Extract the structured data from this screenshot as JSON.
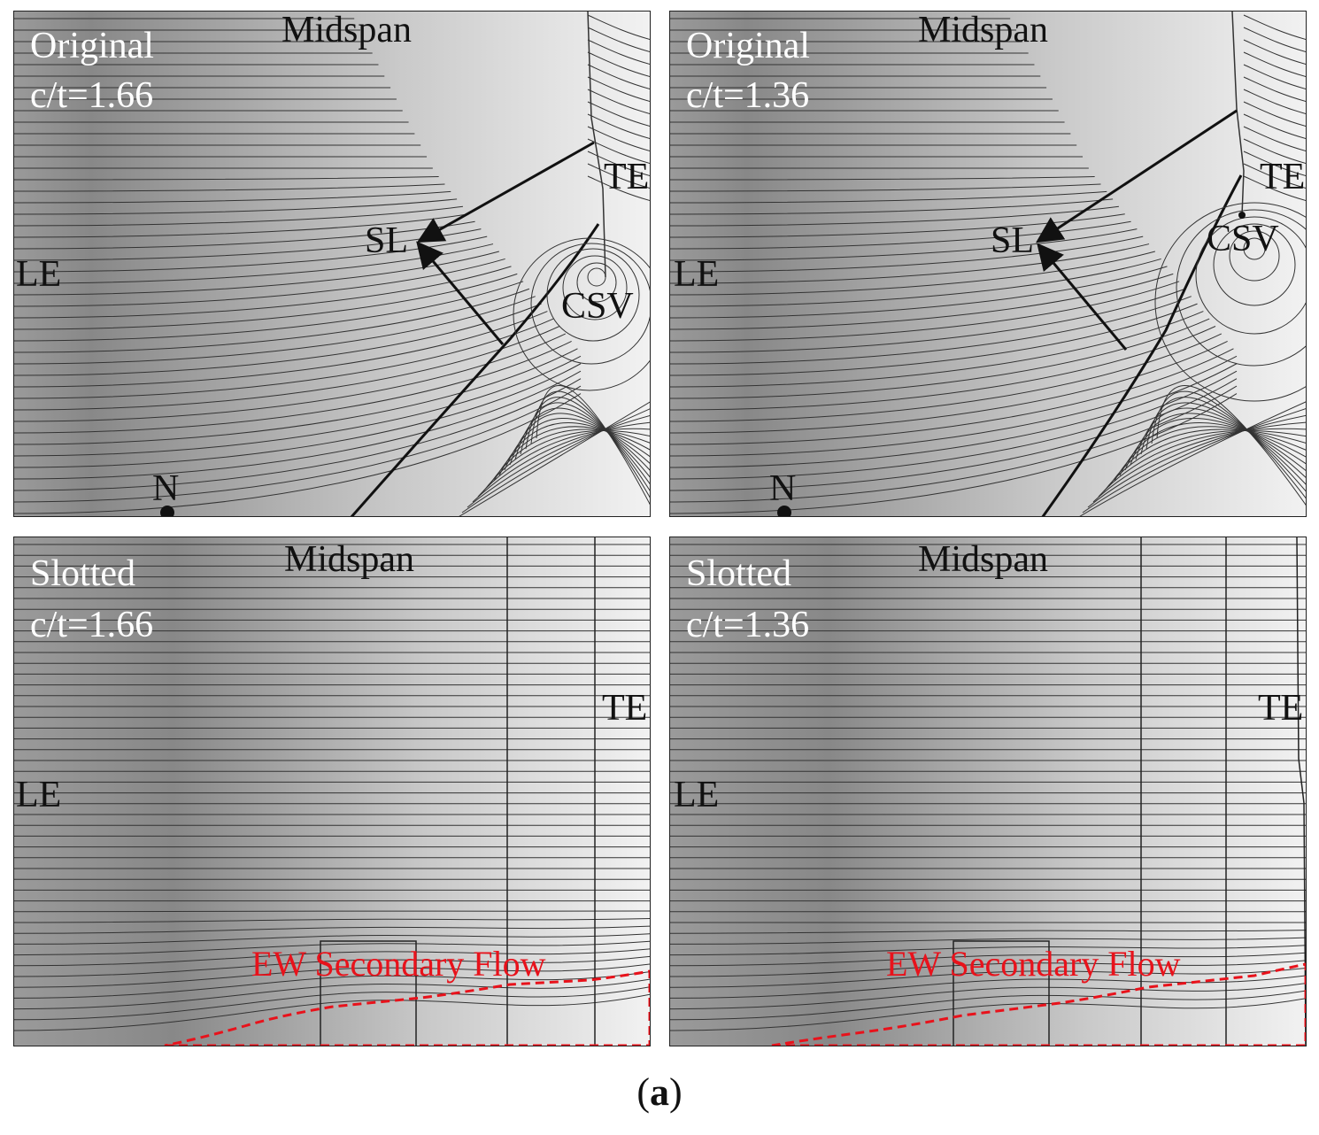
{
  "panels": [
    {
      "id": "top-left",
      "case": "Original",
      "ratio": "c/t=1.66",
      "midspan": "Midspan",
      "le": "LE",
      "te": "TE",
      "sl": "SL",
      "csv": "CSV",
      "n": "N"
    },
    {
      "id": "top-right",
      "case": "Original",
      "ratio": "c/t=1.36",
      "midspan": "Midspan",
      "le": "LE",
      "te": "TE",
      "sl": "SL",
      "csv": "CSV",
      "n": "N"
    },
    {
      "id": "bottom-left",
      "case": "Slotted",
      "ratio": "c/t=1.66",
      "midspan": "Midspan",
      "le": "LE",
      "te": "TE",
      "flow": "EW Secondary Flow"
    },
    {
      "id": "bottom-right",
      "case": "Slotted",
      "ratio": "c/t=1.36",
      "midspan": "Midspan",
      "le": "LE",
      "te": "TE",
      "flow": "EW Secondary Flow"
    }
  ],
  "caption": {
    "open": "(",
    "letter": "a",
    "close": ")"
  },
  "colors": {
    "streamline": "#333333",
    "annotation_red": "#e8121b",
    "gradient_dark": "#8c8c8c",
    "gradient_light": "#f0f0f0"
  }
}
